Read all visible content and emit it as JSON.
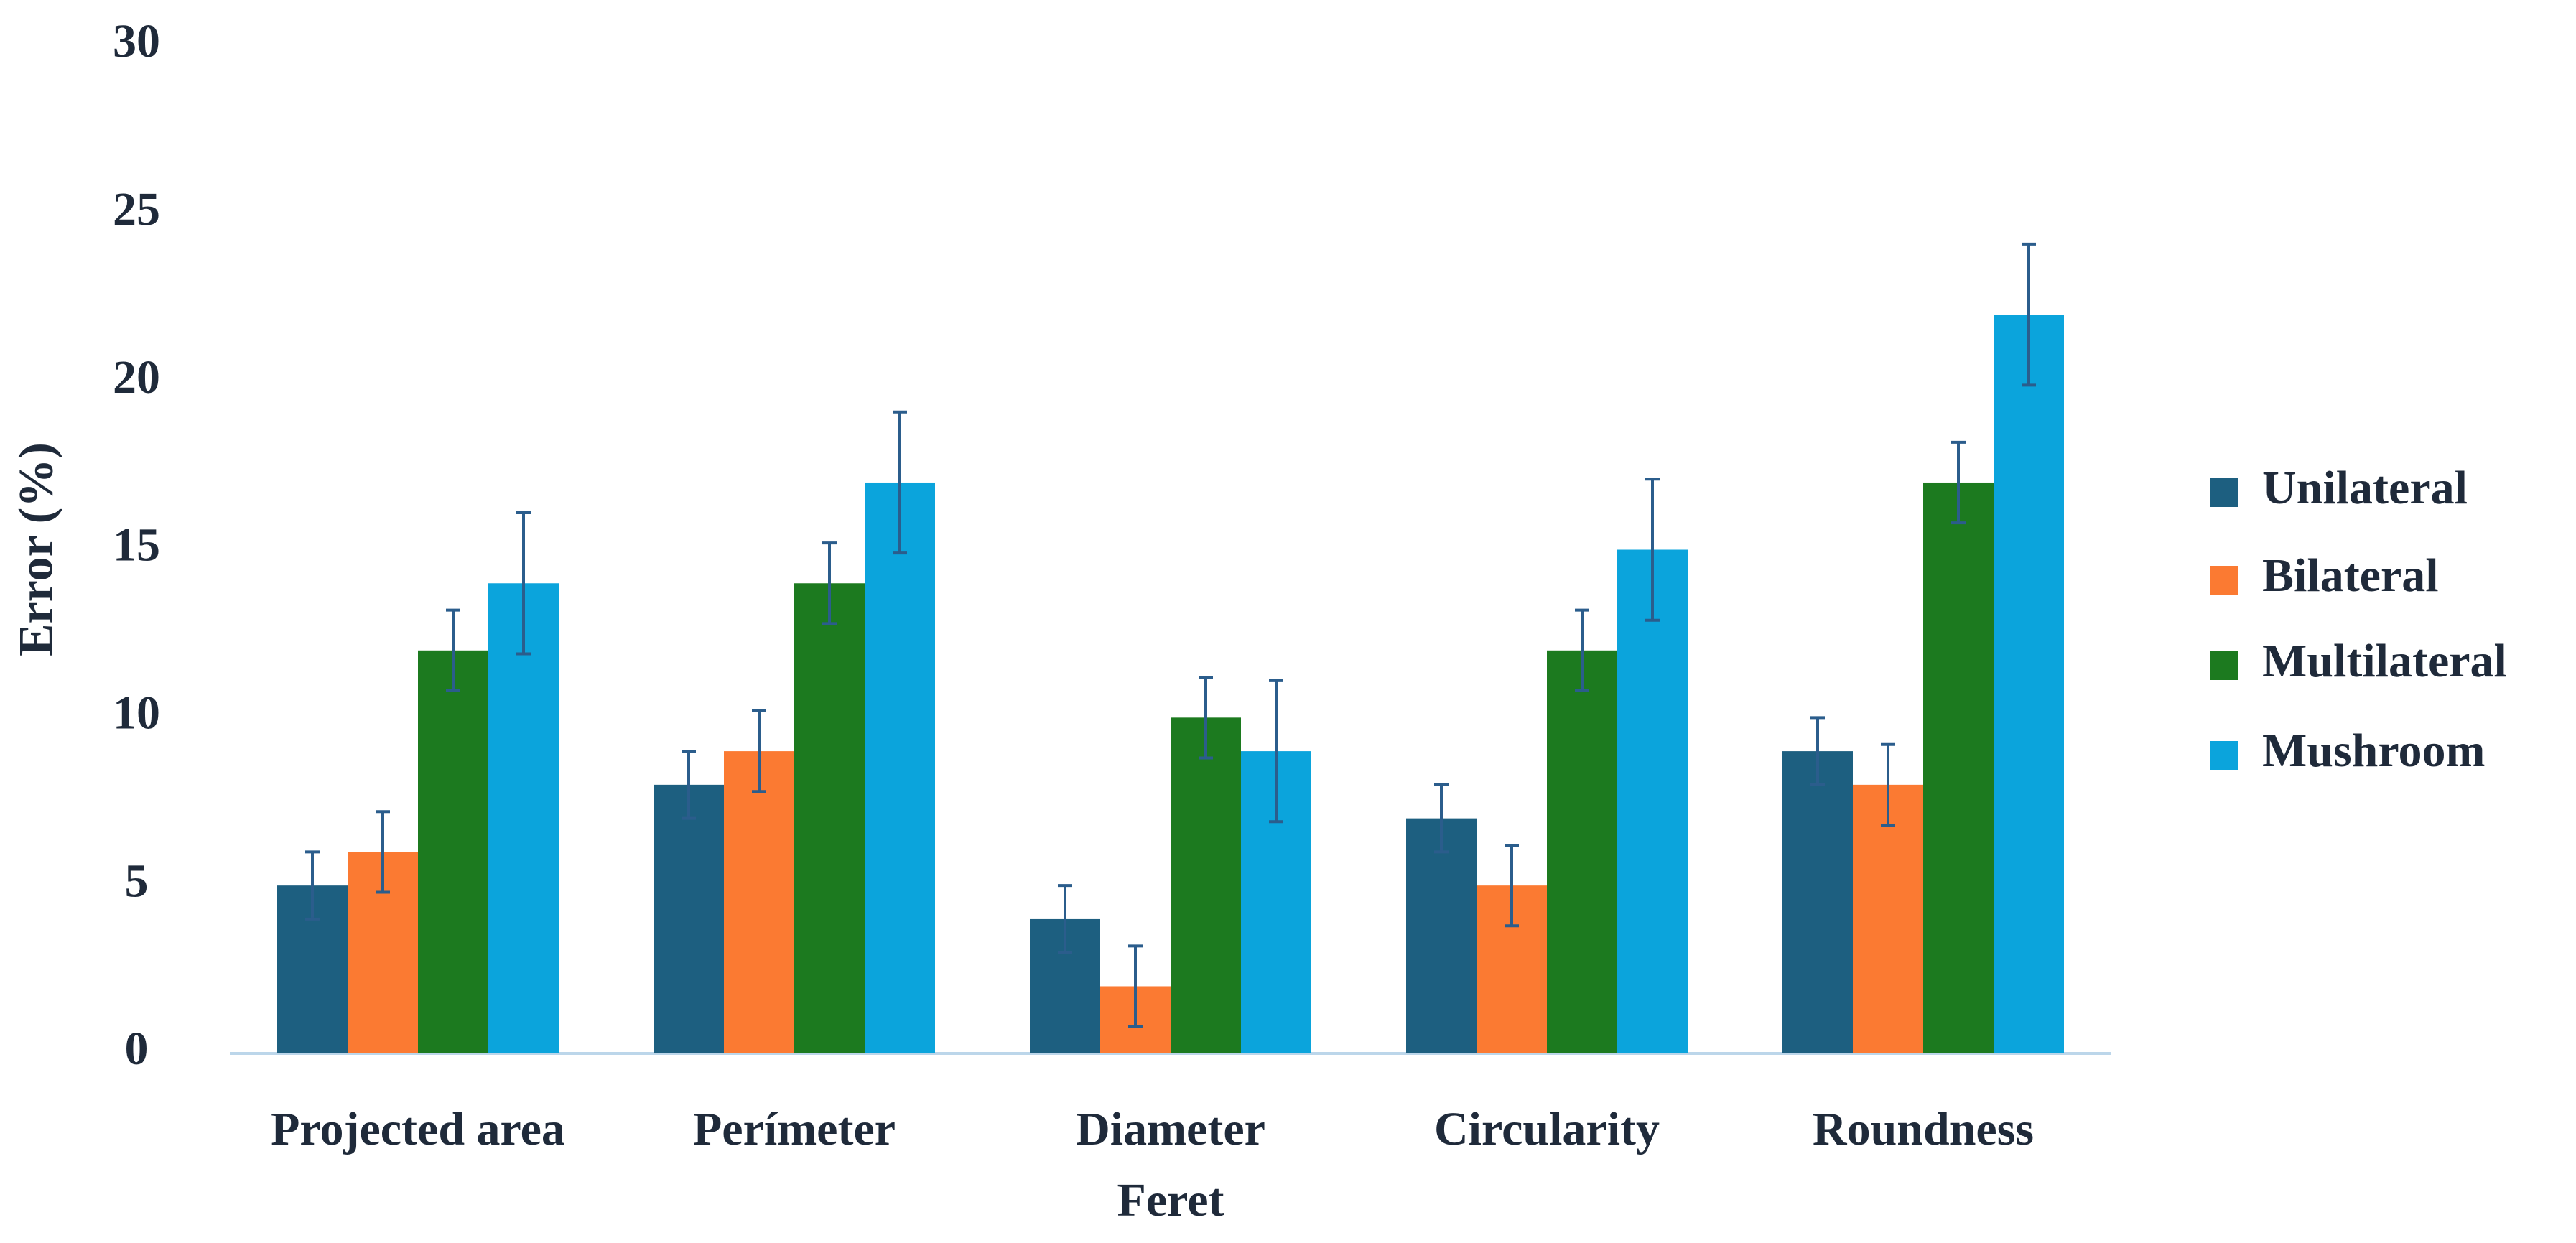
{
  "chart_data": {
    "type": "bar",
    "y_label": "Error (%)",
    "categories": [
      "Projected area",
      "Perímeter",
      "Diameter\nFeret",
      "Circularity",
      "Roundness"
    ],
    "series": [
      {
        "name": "Unilateral",
        "color": "#1d5f80",
        "values": [
          5,
          8,
          4,
          7,
          9
        ],
        "errors": [
          1,
          1,
          1,
          1,
          1
        ]
      },
      {
        "name": "Bilateral",
        "color": "#fb7a32",
        "values": [
          6,
          9,
          2,
          5,
          8
        ],
        "errors": [
          1.2,
          1.2,
          1.2,
          1.2,
          1.2
        ]
      },
      {
        "name": "Multilateral",
        "color": "#1c7a1f",
        "values": [
          12,
          14,
          10,
          12,
          17
        ],
        "errors": [
          1.2,
          1.2,
          1.2,
          1.2,
          1.2
        ]
      },
      {
        "name": "Mushroom",
        "color": "#0ba4dc",
        "values": [
          14,
          17,
          9,
          15,
          22
        ],
        "errors": [
          2.1,
          2.1,
          2.1,
          2.1,
          2.1
        ]
      }
    ],
    "ylim": [
      0,
      30
    ],
    "yticks": [
      0,
      5,
      10,
      15,
      20,
      25,
      30
    ],
    "grid": false,
    "legend": "right"
  }
}
